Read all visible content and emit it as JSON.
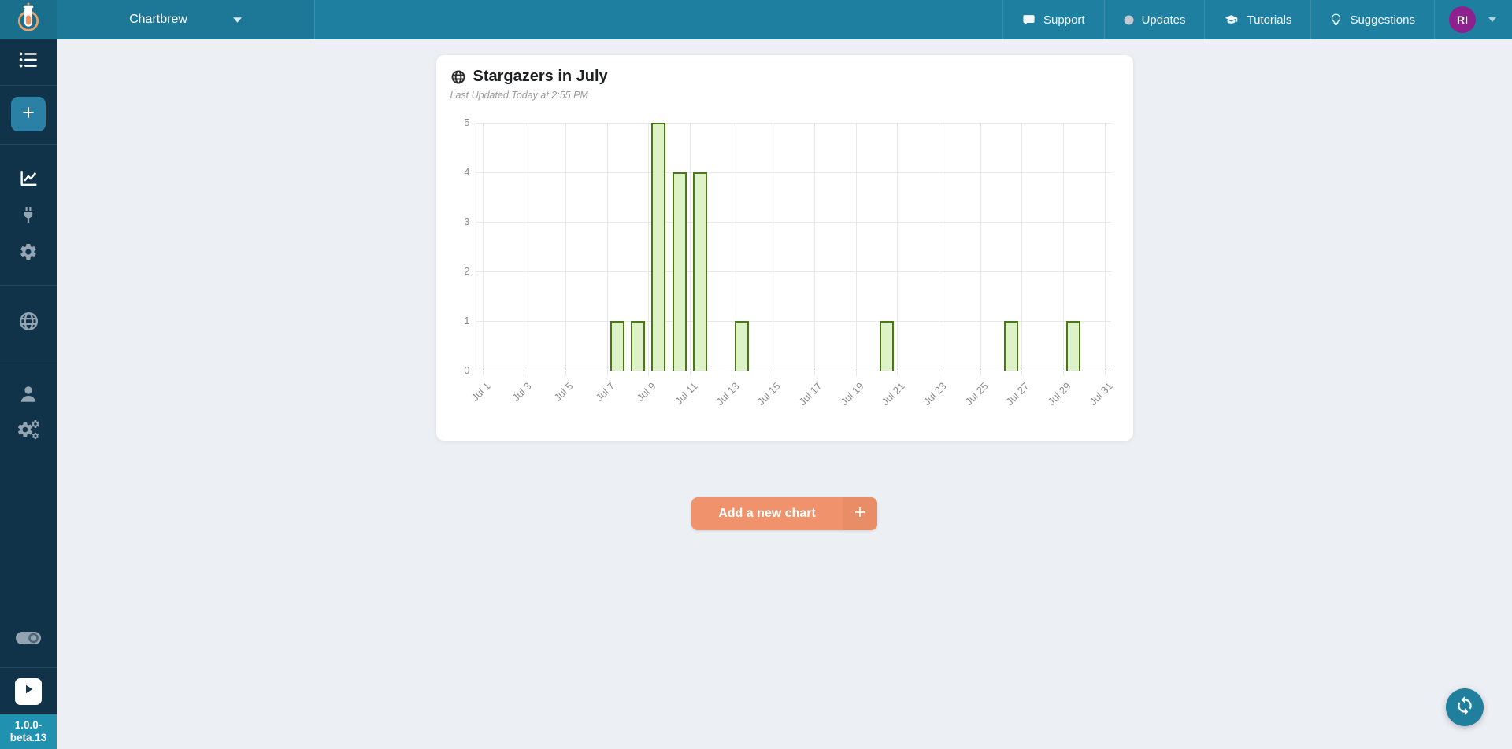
{
  "navbar": {
    "team_name": "Chartbrew",
    "links": [
      {
        "label": "Support",
        "icon": "chat-icon"
      },
      {
        "label": "Updates",
        "icon": "status-dot-icon"
      },
      {
        "label": "Tutorials",
        "icon": "graduation-cap-icon"
      },
      {
        "label": "Suggestions",
        "icon": "lightbulb-icon"
      }
    ],
    "avatar_initials": "RI"
  },
  "sidebar": {
    "icons": [
      "menu-list-icon",
      "add-chart-plus-icon",
      "line-chart-icon",
      "plug-icon",
      "gear-icon",
      "globe-icon",
      "user-icon",
      "cogs-icon",
      "toggle-icon",
      "play-icon"
    ],
    "version": "1.0.0-beta.13"
  },
  "main": {
    "chart_card": {
      "title": "Stargazers in July",
      "last_updated": "Last Updated Today at 2:55 PM"
    },
    "add_chart_label": "Add a new chart"
  },
  "chart_data": {
    "type": "bar",
    "title": "Stargazers in July",
    "categories": [
      "Jul 1",
      "Jul 2",
      "Jul 3",
      "Jul 4",
      "Jul 5",
      "Jul 6",
      "Jul 7",
      "Jul 8",
      "Jul 9",
      "Jul 10",
      "Jul 11",
      "Jul 12",
      "Jul 13",
      "Jul 14",
      "Jul 15",
      "Jul 16",
      "Jul 17",
      "Jul 18",
      "Jul 19",
      "Jul 20",
      "Jul 21",
      "Jul 22",
      "Jul 23",
      "Jul 24",
      "Jul 25",
      "Jul 26",
      "Jul 27",
      "Jul 28",
      "Jul 29",
      "Jul 30",
      "Jul 31"
    ],
    "values": [
      0,
      0,
      0,
      0,
      0,
      0,
      1,
      1,
      5,
      4,
      4,
      0,
      1,
      0,
      0,
      0,
      0,
      0,
      0,
      1,
      0,
      0,
      0,
      0,
      0,
      1,
      0,
      0,
      1,
      0,
      0
    ],
    "visible_x_ticks": [
      "Jul 1",
      "Jul 3",
      "Jul 5",
      "Jul 7",
      "Jul 9",
      "Jul 11",
      "Jul 13",
      "Jul 15",
      "Jul 17",
      "Jul 19",
      "Jul 21",
      "Jul 23",
      "Jul 25",
      "Jul 27",
      "Jul 29",
      "Jul 31"
    ],
    "yticks": [
      0,
      1,
      2,
      3,
      4,
      5
    ],
    "ylim": [
      0,
      5
    ],
    "xlabel": "",
    "ylabel": "",
    "grid": true,
    "legend": false,
    "bar_fill": "#ddf2c6",
    "bar_border": "#4b7a15"
  },
  "colors": {
    "navbar_teal": "#1f7fa0",
    "sidebar_navy": "#113349",
    "version_badge_teal": "#2191b0",
    "avatar_purple": "#8e2190",
    "add_button_salmon": "#f0926c",
    "fab_teal": "#1f7f9d",
    "page_background": "#ecf0f4"
  }
}
